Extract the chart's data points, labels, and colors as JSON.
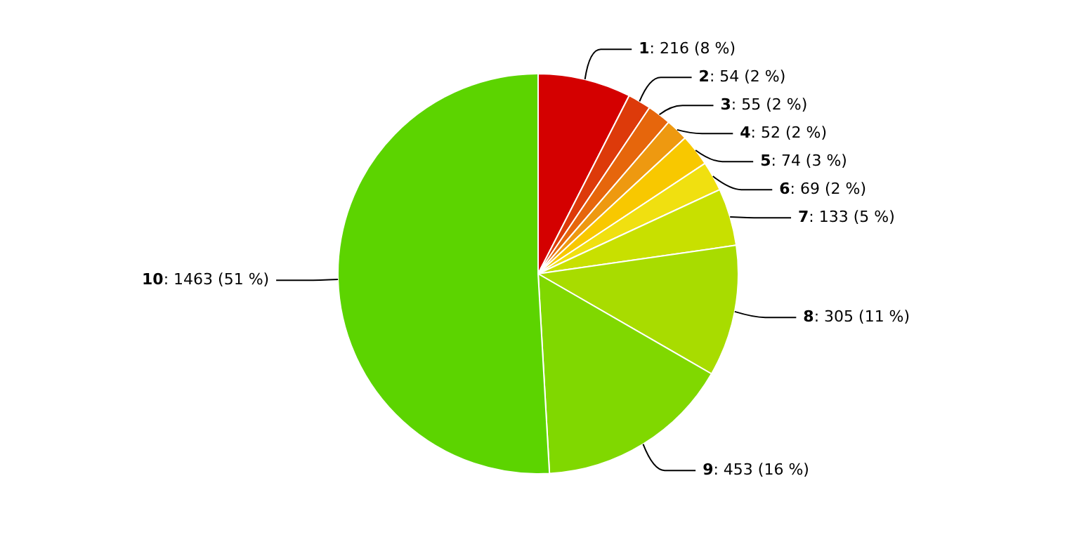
{
  "chart_data": {
    "type": "pie",
    "categories": [
      "1",
      "2",
      "3",
      "4",
      "5",
      "6",
      "7",
      "8",
      "9",
      "10"
    ],
    "values": [
      216,
      54,
      55,
      52,
      74,
      69,
      133,
      305,
      453,
      1463
    ],
    "value_labels": [
      ": 216 (8 %)",
      ": 54 (2 %)",
      ": 55 (2 %)",
      ": 52 (2 %)",
      ": 74 (3 %)",
      ": 69 (2 %)",
      ": 133 (5 %)",
      ": 305 (11 %)",
      ": 453 (16 %)",
      ": 1463 (51 %)"
    ],
    "colors": [
      "#d40000",
      "#dd3a0a",
      "#e6660c",
      "#ee9910",
      "#f8c800",
      "#f0e010",
      "#c8e000",
      "#a8dc00",
      "#80d800",
      "#5cd400"
    ],
    "legend": false
  }
}
